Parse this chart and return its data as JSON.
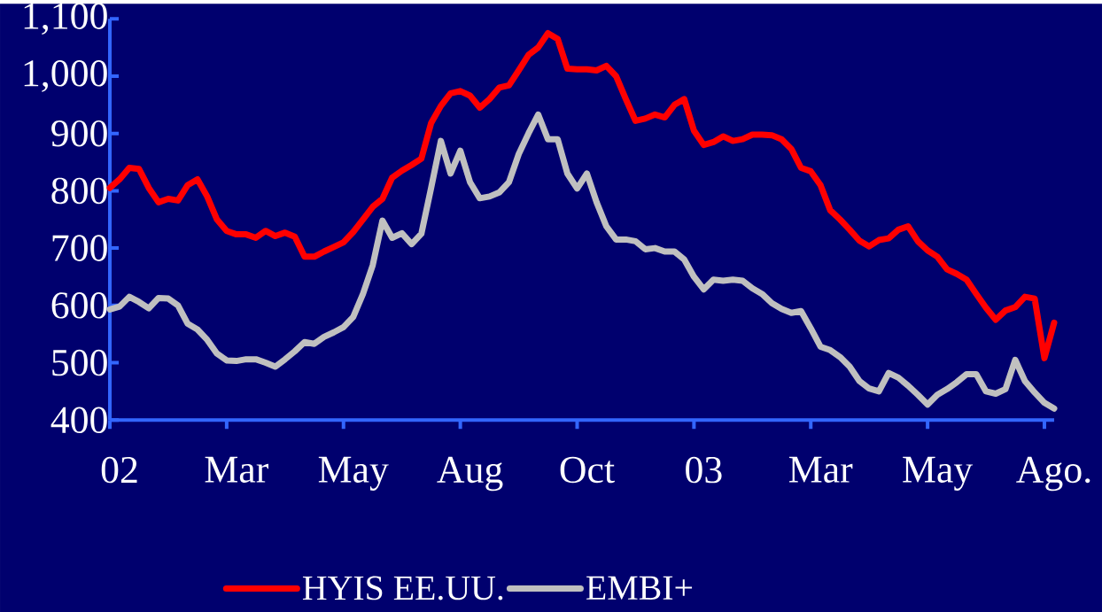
{
  "chart_data": {
    "type": "line",
    "ylim": [
      400,
      1100
    ],
    "categories": [
      null,
      "02",
      null,
      null,
      null,
      null,
      null,
      null,
      null,
      null,
      null,
      null,
      null,
      "Mar",
      null,
      null,
      null,
      null,
      null,
      null,
      null,
      null,
      null,
      null,
      null,
      "May",
      null,
      null,
      null,
      null,
      null,
      null,
      null,
      null,
      null,
      null,
      null,
      "Aug",
      null,
      null,
      null,
      null,
      null,
      null,
      null,
      null,
      null,
      null,
      null,
      "Oct",
      null,
      null,
      null,
      null,
      null,
      null,
      null,
      null,
      null,
      null,
      null,
      "03",
      null,
      null,
      null,
      null,
      null,
      null,
      null,
      null,
      null,
      null,
      null,
      "Mar",
      null,
      null,
      null,
      null,
      null,
      null,
      null,
      null,
      null,
      null,
      null,
      "May",
      null,
      null,
      null,
      null,
      null,
      null,
      null,
      null,
      null,
      null,
      null,
      "Ago."
    ],
    "yticks": [
      400,
      500,
      600,
      700,
      800,
      900,
      {
        "value": 1000,
        "label": "1,000"
      },
      {
        "value": 1100,
        "label": "1,100"
      }
    ],
    "legend": "bottom",
    "series": [
      {
        "name": "HYIS EE.UU.",
        "color": "#ff0000",
        "values": [
          805,
          820,
          840,
          838,
          805,
          780,
          786,
          783,
          810,
          820,
          790,
          750,
          730,
          724,
          724,
          718,
          730,
          721,
          727,
          720,
          685,
          685,
          694,
          702,
          710,
          728,
          750,
          772,
          786,
          823,
          835,
          845,
          856,
          918,
          948,
          970,
          974,
          966,
          945,
          960,
          980,
          984,
          1010,
          1037,
          1050,
          1075,
          1065,
          1013,
          1012,
          1012,
          1010,
          1018,
          1000,
          960,
          922,
          926,
          933,
          928,
          950,
          960,
          905,
          880,
          885,
          895,
          887,
          890,
          898,
          898,
          897,
          890,
          873,
          840,
          834,
          810,
          766,
          750,
          732,
          713,
          703,
          714,
          717,
          732,
          738,
          712,
          696,
          685,
          663,
          655,
          645,
          620,
          596,
          575,
          591,
          597,
          615,
          612,
          508,
          570
        ]
      },
      {
        "name": "EMBI+",
        "color": "#c0c0c0",
        "values": [
          593,
          598,
          615,
          606,
          595,
          613,
          612,
          600,
          568,
          558,
          540,
          516,
          504,
          503,
          506,
          506,
          500,
          493,
          506,
          520,
          536,
          533,
          545,
          553,
          562,
          580,
          620,
          670,
          748,
          718,
          726,
          707,
          725,
          805,
          887,
          830,
          870,
          815,
          787,
          790,
          797,
          815,
          864,
          900,
          933,
          890,
          890,
          830,
          804,
          830,
          780,
          738,
          715,
          715,
          712,
          698,
          700,
          694,
          694,
          680,
          650,
          628,
          645,
          643,
          645,
          643,
          630,
          620,
          604,
          594,
          587,
          590,
          560,
          528,
          522,
          510,
          493,
          468,
          455,
          450,
          482,
          474,
          460,
          444,
          427,
          444,
          454,
          466,
          480,
          480,
          450,
          446,
          454,
          505,
          468,
          448,
          430,
          420
        ]
      }
    ]
  }
}
